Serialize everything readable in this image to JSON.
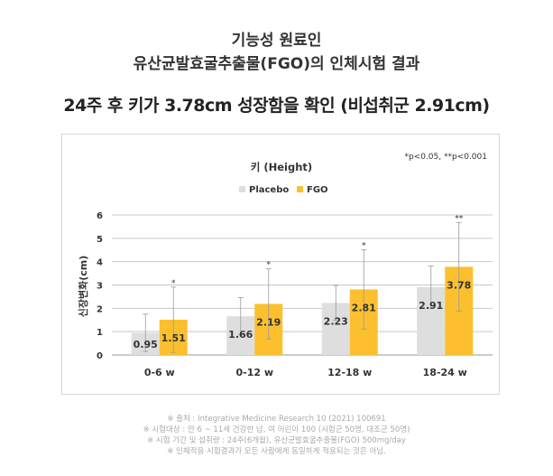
{
  "header": {
    "title_line1": "기능성 원료인",
    "title_line2": "유산균발효굴추출물(FGO)의 인체시험 결과",
    "headline": "24주 후 키가 3.78cm 성장함을 확인 (비섭취군 2.91cm)"
  },
  "chart_data": {
    "type": "bar",
    "title": "키 (Height)",
    "significance_note": "*p<0.05, **p<0.001",
    "ylabel": "신장변화(cm)",
    "xlabel": "",
    "ylim": [
      0,
      6
    ],
    "yticks": [
      "0",
      "1",
      "2",
      "3",
      "4",
      "5",
      "6"
    ],
    "categories": [
      "0-6 w",
      "0-12 w",
      "12-18 w",
      "18-24 w"
    ],
    "series": [
      {
        "name": "Placebo",
        "color": "#dedede",
        "values": [
          0.95,
          1.66,
          2.23,
          2.91
        ],
        "labels": [
          "0.95",
          "1.66",
          "2.23",
          "2.91"
        ],
        "err": [
          0.8,
          0.8,
          0.75,
          0.9
        ]
      },
      {
        "name": "FGO",
        "color": "#fcc02e",
        "values": [
          1.51,
          2.19,
          2.81,
          3.78
        ],
        "labels": [
          "1.51",
          "2.19",
          "2.81",
          "3.78"
        ],
        "err": [
          1.4,
          1.5,
          1.7,
          1.9
        ]
      }
    ],
    "significance_marks": [
      "*",
      "*",
      "*",
      "**"
    ],
    "grid": true,
    "legend_position": "top-center"
  },
  "footnotes": [
    "※ 출처 : Integrative Medicine Research 10 (2021) 100691",
    "※ 시험대상 : 만 6 ~ 11세 건강한 남, 여 어린이 100 (시험군 50명, 대조군 50명)",
    "※ 시험 기간 및 섭취량 : 24주(6개월), 유산균발효굴추출물(FGO) 500mg/day",
    "※ 인체적용 시험결과가 모든 사람에게 동일하게 적용되는 것은 아님."
  ]
}
